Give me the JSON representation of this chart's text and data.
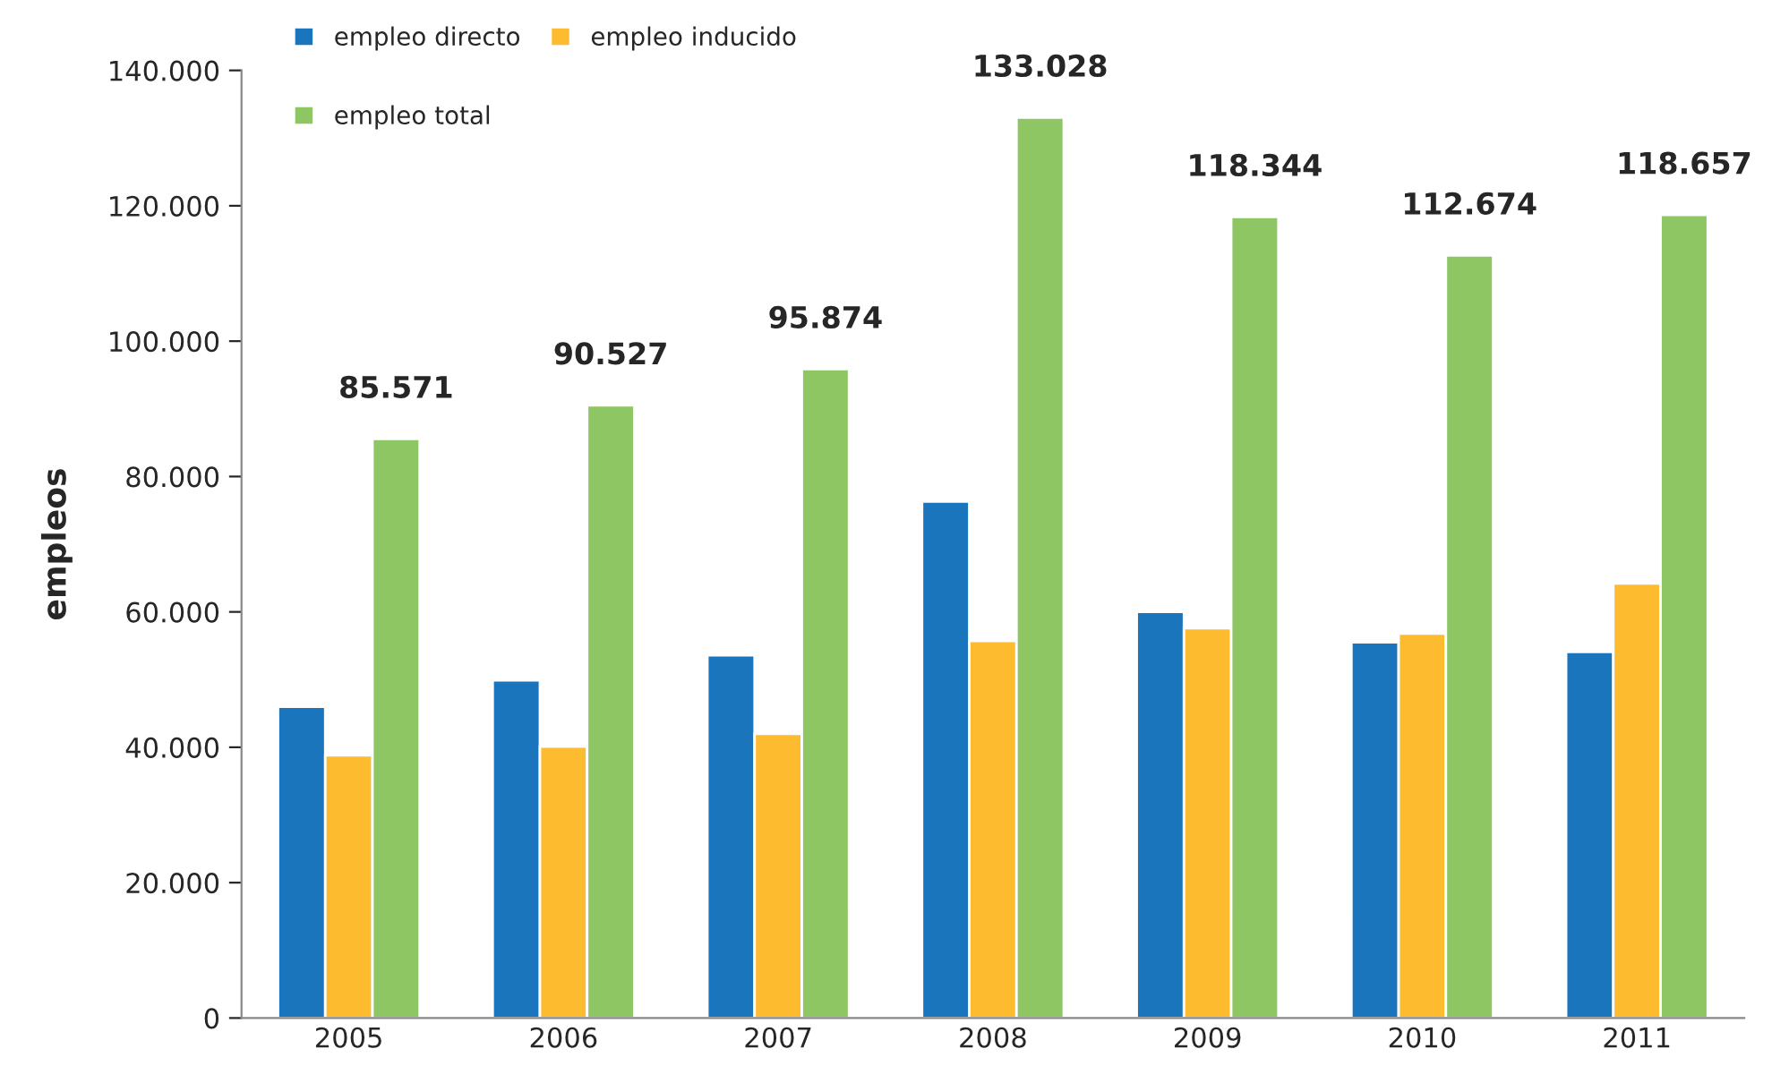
{
  "chart_data": {
    "type": "bar",
    "ylabel": "empleos",
    "categories": [
      "2005",
      "2006",
      "2007",
      "2008",
      "2009",
      "2010",
      "2011"
    ],
    "series": [
      {
        "name": "empleo directo",
        "color": "#1b75bc",
        "values": [
          46000,
          49900,
          53600,
          76300,
          60000,
          55500,
          54100
        ]
      },
      {
        "name": "empleo inducido",
        "color": "#fdbb30",
        "values": [
          38800,
          40100,
          42000,
          55700,
          57600,
          56800,
          64200
        ]
      },
      {
        "name": "empleo total",
        "color": "#8dc663",
        "values": [
          85571,
          90527,
          95874,
          133028,
          118344,
          112674,
          118657
        ],
        "value_labels": [
          "85.571",
          "90.527",
          "95.874",
          "133.028",
          "118.344",
          "112.674",
          "118.657"
        ]
      }
    ],
    "ylim": [
      0,
      140000
    ],
    "yticks": [
      0,
      {
        "value": 20000,
        "label": "20.000"
      },
      {
        "value": 40000,
        "label": "40.000"
      },
      {
        "value": 60000,
        "label": "60.000"
      },
      {
        "value": 80000,
        "label": "80.000"
      },
      {
        "value": 100000,
        "label": "100.000"
      },
      {
        "value": 120000,
        "label": "120.000"
      },
      {
        "value": 140000,
        "label": "140.000"
      }
    ],
    "grid": false,
    "legend": "top left"
  }
}
